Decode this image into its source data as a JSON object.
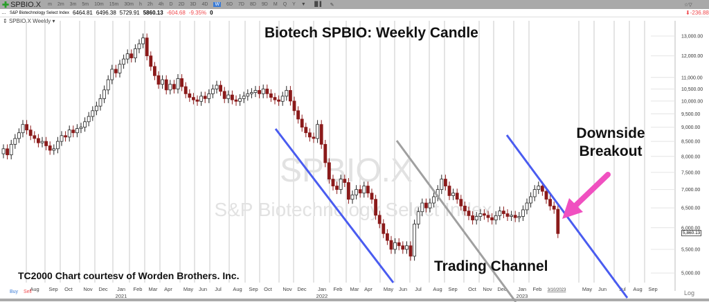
{
  "toolbar": {
    "symbol": "SPBIO.X",
    "timeframes": [
      "m",
      "2m",
      "3m",
      "5m",
      "10m",
      "15m",
      "30m",
      "h",
      "2h",
      "4h",
      "D",
      "2D",
      "3D",
      "4D",
      "W",
      "6D",
      "7D",
      "8D",
      "9D",
      "M",
      "Q",
      "Y"
    ],
    "active": "W"
  },
  "quote": {
    "name": "S&P Biotechnology Select Index",
    "open": "6464.81",
    "high": "6496.38",
    "low": "5729.91",
    "last": "5860.13",
    "change": "-604.68",
    "pct": "-9.35%",
    "volume": "0",
    "right_change": "-236.88"
  },
  "chart_label": "SPBIO.X Weekly",
  "watermark": {
    "symbol": "SPBIO.X",
    "name": "S&P Biotechnology Select Index"
  },
  "annotations": {
    "title": "Biotech SPBIO:  Weekly Candle",
    "breakout": "Downside Breakout",
    "channel": "Trading Channel",
    "credit": "TC2000 Chart courtesv of Worden Brothers. Inc."
  },
  "buttons": {
    "buy": "Buy",
    "sell": "Sell",
    "log": "Log"
  },
  "price_badge": "5,860.13",
  "colors": {
    "down": "#8b1a1a",
    "up": "#ffffff",
    "channel": "#4a5cf0",
    "channel_gray": "#a0a0a0",
    "arrow": "#f050c0"
  },
  "chart_data": {
    "type": "candlestick",
    "title": "Biotech SPBIO:  Weekly Candle",
    "scale": "log",
    "ylim": [
      4900,
      13500
    ],
    "yticks": [
      "13,000.00",
      "12,000.00",
      "11,000.00",
      "10,500.00",
      "10,000.00",
      "9,500.00",
      "9,000.00",
      "8,500.00",
      "8,000.00",
      "7,500.00",
      "7,000.00",
      "6,500.00",
      "6,000.00",
      "5,500.00",
      "5,000.00"
    ],
    "ytick_values": [
      13000,
      12000,
      11000,
      10500,
      10000,
      9500,
      9000,
      8500,
      8000,
      7500,
      7000,
      6500,
      6000,
      5500,
      5000
    ],
    "xticks": [
      [
        "Aug",
        ""
      ],
      [
        "Sep",
        ""
      ],
      [
        "Oct",
        ""
      ],
      [
        "Nov",
        ""
      ],
      [
        "Dec",
        ""
      ],
      [
        "Jan",
        "2021"
      ],
      [
        "Feb",
        ""
      ],
      [
        "Mar",
        ""
      ],
      [
        "Apr",
        ""
      ],
      [
        "May",
        ""
      ],
      [
        "Jun",
        ""
      ],
      [
        "Jul",
        ""
      ],
      [
        "Aug",
        ""
      ],
      [
        "Sep",
        ""
      ],
      [
        "Oct",
        ""
      ],
      [
        "Nov",
        ""
      ],
      [
        "Dec",
        ""
      ],
      [
        "Jan",
        "2022"
      ],
      [
        "Feb",
        ""
      ],
      [
        "Mar",
        ""
      ],
      [
        "Apr",
        ""
      ],
      [
        "May",
        ""
      ],
      [
        "Jun",
        ""
      ],
      [
        "Jul",
        ""
      ],
      [
        "Aug",
        ""
      ],
      [
        "Sep",
        ""
      ],
      [
        "Oct",
        ""
      ],
      [
        "Nov",
        ""
      ],
      [
        "Dec",
        ""
      ],
      [
        "Jan",
        "2023"
      ],
      [
        "Feb",
        ""
      ],
      [
        "3/10/2023",
        ""
      ],
      [
        "May",
        ""
      ],
      [
        "Jun",
        ""
      ],
      [
        "Jul",
        ""
      ],
      [
        "Aug",
        ""
      ],
      [
        "Sep",
        ""
      ]
    ],
    "frequency": "weekly",
    "closes": [
      8250,
      8050,
      8400,
      8600,
      8800,
      9100,
      8900,
      8700,
      8600,
      8450,
      8500,
      8350,
      8200,
      8250,
      8500,
      8700,
      8650,
      8900,
      8800,
      8950,
      9000,
      9200,
      9400,
      9620,
      9800,
      10100,
      10460,
      10900,
      11370,
      11200,
      11600,
      11850,
      12100,
      11900,
      12350,
      12600,
      12900,
      12000,
      11500,
      11080,
      10700,
      10900,
      10460,
      10700,
      10500,
      10950,
      10600,
      10300,
      10150,
      10050,
      9990,
      10200,
      10100,
      10300,
      10500,
      10660,
      10400,
      10100,
      10250,
      10050,
      9990,
      10100,
      10200,
      10300,
      10350,
      10440,
      10300,
      10500,
      10300,
      10150,
      10050,
      9990,
      10200,
      10440,
      10000,
      9620,
      9300,
      9000,
      8800,
      8650,
      8600,
      9100,
      8400,
      7800,
      7300,
      7100,
      7000,
      7300,
      7200,
      6730,
      6850,
      7000,
      6900,
      7100,
      6900,
      6730,
      6310,
      6100,
      5860,
      5700,
      5500,
      5650,
      5580,
      5500,
      5580,
      5350,
      6090,
      6400,
      6630,
      6500,
      6630,
      6800,
      7000,
      7300,
      7100,
      6830,
      6900,
      6730,
      6550,
      6420,
      6300,
      6190,
      6280,
      6350,
      6310,
      6250,
      6190,
      6300,
      6420,
      6350,
      6280,
      6310,
      6250,
      6280,
      6450,
      6630,
      6800,
      7000,
      7100,
      6950,
      6730,
      6550,
      6464.81,
      5860.13
    ]
  }
}
